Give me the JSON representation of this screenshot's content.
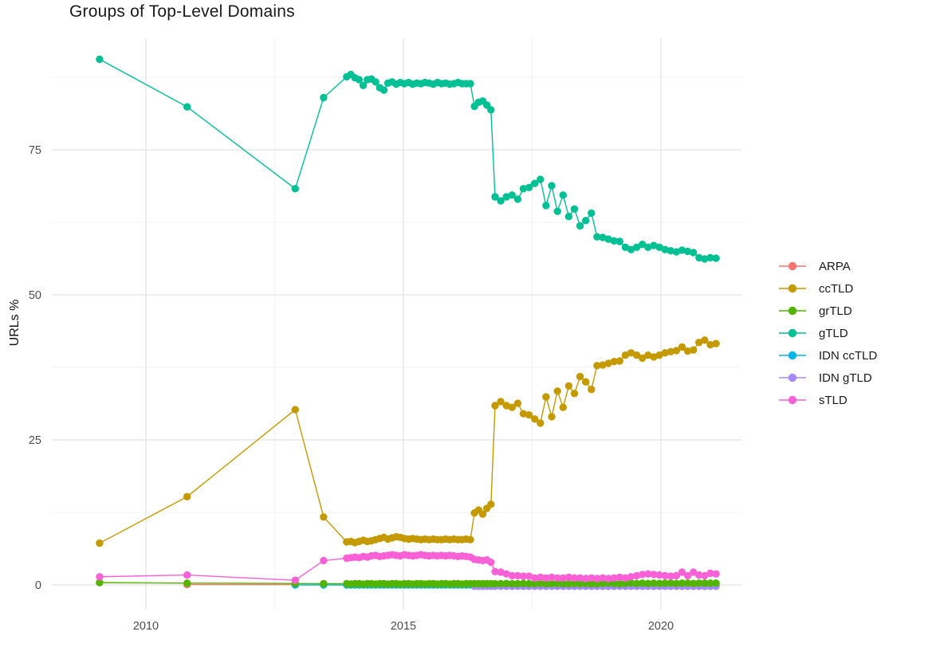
{
  "chart_data": {
    "type": "line",
    "title": "Groups of Top-Level Domains",
    "xlabel": "",
    "ylabel": "URLs %",
    "x_ticks": [
      2010,
      2015,
      2020
    ],
    "x_minor_ticks": [
      2012.5,
      2017.5
    ],
    "y_ticks": [
      0,
      25,
      50,
      75
    ],
    "y_minor_ticks": [
      12.5,
      37.5,
      62.5,
      87.5
    ],
    "x_range": [
      2008.2,
      2021.6
    ],
    "y_range": [
      -4.3,
      94.2
    ],
    "grid": true,
    "legend_position": "right",
    "background": "#FFFFFF",
    "grid_major_color": "#E3E3E3",
    "grid_minor_color": "#EFEFEF",
    "axis_text_color": "#4D4D4D",
    "series": [
      {
        "name": "ARPA",
        "color": "#F8766D",
        "x": [
          2010.8,
          2012.9
        ],
        "y": [
          0.05,
          0.05
        ]
      },
      {
        "name": "ccTLD",
        "color": "#C49A00",
        "x": [
          2009.1,
          2010.8,
          2012.9,
          2013.45,
          2013.9,
          2013.98,
          2014.06,
          2014.14,
          2014.22,
          2014.3,
          2014.38,
          2014.46,
          2014.54,
          2014.62,
          2014.7,
          2014.78,
          2014.86,
          2014.94,
          2015.02,
          2015.1,
          2015.18,
          2015.26,
          2015.34,
          2015.42,
          2015.5,
          2015.58,
          2015.66,
          2015.74,
          2015.82,
          2015.9,
          2015.98,
          2016.06,
          2016.14,
          2016.22,
          2016.3,
          2016.38,
          2016.46,
          2016.54,
          2016.62,
          2016.7,
          2016.78,
          2016.89,
          2017,
          2017.11,
          2017.22,
          2017.33,
          2017.44,
          2017.55,
          2017.66,
          2017.77,
          2017.88,
          2017.99,
          2018.1,
          2018.21,
          2018.32,
          2018.43,
          2018.54,
          2018.65,
          2018.76,
          2018.87,
          2018.98,
          2019.09,
          2019.2,
          2019.31,
          2019.42,
          2019.53,
          2019.64,
          2019.75,
          2019.86,
          2019.97,
          2020.08,
          2020.19,
          2020.3,
          2020.41,
          2020.52,
          2020.63,
          2020.74,
          2020.85,
          2020.96,
          2021.07
        ],
        "y": [
          7.2,
          15.2,
          30.2,
          11.7,
          7.4,
          7.5,
          7.3,
          7.5,
          7.7,
          7.5,
          7.6,
          7.8,
          8,
          8.2,
          7.9,
          8.1,
          8.3,
          8.2,
          8,
          7.9,
          8,
          7.9,
          7.8,
          7.9,
          7.8,
          7.9,
          7.8,
          7.8,
          7.9,
          7.8,
          7.9,
          7.8,
          7.8,
          7.9,
          7.8,
          12.4,
          12.9,
          12.2,
          13.2,
          13.9,
          30.9,
          31.6,
          30.9,
          30.6,
          31.3,
          29.5,
          29.3,
          28.6,
          27.9,
          32.4,
          29,
          33.4,
          30.6,
          34.3,
          33,
          35.9,
          35,
          33.7,
          37.8,
          37.9,
          38.2,
          38.5,
          38.6,
          39.6,
          40,
          39.6,
          39.1,
          39.6,
          39.3,
          39.6,
          40,
          40.2,
          40.4,
          41,
          40.3,
          40.5,
          41.8,
          42.2,
          41.4,
          41.6
        ]
      },
      {
        "name": "grTLD",
        "color": "#53B400",
        "x": [
          2009.1,
          2010.8,
          2012.9,
          2013.45,
          2013.9,
          2013.98,
          2014.06,
          2014.14,
          2014.22,
          2014.3,
          2014.38,
          2014.46,
          2014.54,
          2014.62,
          2014.7,
          2014.78,
          2014.86,
          2014.94,
          2015.02,
          2015.1,
          2015.18,
          2015.26,
          2015.34,
          2015.42,
          2015.5,
          2015.58,
          2015.66,
          2015.74,
          2015.82,
          2015.9,
          2015.98,
          2016.06,
          2016.14,
          2016.22,
          2016.3,
          2016.38,
          2016.46,
          2016.54,
          2016.62,
          2016.7,
          2016.78,
          2016.89,
          2017,
          2017.11,
          2017.22,
          2017.33,
          2017.44,
          2017.55,
          2017.66,
          2017.77,
          2017.88,
          2017.99,
          2018.1,
          2018.21,
          2018.32,
          2018.43,
          2018.54,
          2018.65,
          2018.76,
          2018.87,
          2018.98,
          2019.09,
          2019.2,
          2019.31,
          2019.42,
          2019.53,
          2019.64,
          2019.75,
          2019.86,
          2019.97,
          2020.08,
          2020.19,
          2020.3,
          2020.41,
          2020.52,
          2020.63,
          2020.74,
          2020.85,
          2020.96,
          2021.07
        ],
        "y": [
          0.4,
          0.3,
          0.25,
          0.2,
          0.2,
          0.15,
          0.2,
          0.2,
          0.15,
          0.2,
          0.2,
          0.15,
          0.2,
          0.2,
          0.15,
          0.2,
          0.2,
          0.15,
          0.2,
          0.2,
          0.15,
          0.2,
          0.2,
          0.15,
          0.2,
          0.2,
          0.15,
          0.2,
          0.2,
          0.15,
          0.2,
          0.2,
          0.15,
          0.2,
          0.2,
          0.2,
          0.2,
          0.2,
          0.2,
          0.2,
          0.2,
          0.2,
          0.25,
          0.2,
          0.2,
          0.25,
          0.2,
          0.2,
          0.25,
          0.2,
          0.2,
          0.25,
          0.2,
          0.2,
          0.25,
          0.2,
          0.25,
          0.2,
          0.2,
          0.25,
          0.3,
          0.25,
          0.2,
          0.25,
          0.3,
          0.25,
          0.3,
          0.25,
          0.3,
          0.25,
          0.3,
          0.3,
          0.25,
          0.3,
          0.3,
          0.25,
          0.3,
          0.3,
          0.3,
          0.3
        ]
      },
      {
        "name": "gTLD",
        "color": "#00C094",
        "x": [
          2009.1,
          2010.8,
          2012.9,
          2013.45,
          2013.9,
          2013.98,
          2014.06,
          2014.14,
          2014.22,
          2014.3,
          2014.38,
          2014.46,
          2014.54,
          2014.62,
          2014.7,
          2014.78,
          2014.86,
          2014.94,
          2015.02,
          2015.1,
          2015.18,
          2015.26,
          2015.34,
          2015.42,
          2015.5,
          2015.58,
          2015.66,
          2015.74,
          2015.82,
          2015.9,
          2015.98,
          2016.06,
          2016.14,
          2016.22,
          2016.3,
          2016.38,
          2016.46,
          2016.54,
          2016.62,
          2016.7,
          2016.78,
          2016.89,
          2017,
          2017.11,
          2017.22,
          2017.33,
          2017.44,
          2017.55,
          2017.66,
          2017.77,
          2017.88,
          2017.99,
          2018.1,
          2018.21,
          2018.32,
          2018.43,
          2018.54,
          2018.65,
          2018.76,
          2018.87,
          2018.98,
          2019.09,
          2019.2,
          2019.31,
          2019.42,
          2019.53,
          2019.64,
          2019.75,
          2019.86,
          2019.97,
          2020.08,
          2020.19,
          2020.3,
          2020.41,
          2020.52,
          2020.63,
          2020.74,
          2020.85,
          2020.96,
          2021.07
        ],
        "y": [
          90.6,
          82.4,
          68.3,
          84,
          87.6,
          88,
          87.4,
          87.1,
          86.1,
          87.1,
          87.2,
          86.7,
          85.7,
          85.3,
          86.5,
          86.7,
          86.3,
          86.6,
          86.4,
          86.6,
          86.3,
          86.5,
          86.4,
          86.6,
          86.5,
          86.3,
          86.6,
          86.4,
          86.5,
          86.3,
          86.4,
          86.6,
          86.4,
          86.4,
          86.4,
          82.5,
          83.2,
          83.4,
          82.7,
          81.9,
          66.9,
          66.2,
          66.9,
          67.2,
          66.5,
          68.3,
          68.5,
          69.2,
          69.9,
          65.4,
          68.8,
          64.4,
          67.2,
          63.5,
          64.8,
          61.9,
          62.8,
          64.1,
          60,
          59.9,
          59.6,
          59.3,
          59.2,
          58.2,
          57.8,
          58.2,
          58.7,
          58.2,
          58.5,
          58.2,
          57.8,
          57.6,
          57.4,
          57.7,
          57.5,
          57.3,
          56.4,
          56.2,
          56.4,
          56.3
        ]
      },
      {
        "name": "IDN ccTLD",
        "color": "#00B6EB",
        "x": [
          2012.9,
          2013.45,
          2013.9,
          2013.98,
          2014.06,
          2014.14,
          2014.22,
          2014.3,
          2014.38,
          2014.46,
          2014.54,
          2014.62,
          2014.7,
          2014.78,
          2014.86,
          2014.94,
          2015.02,
          2015.1,
          2015.18,
          2015.26,
          2015.34,
          2015.42,
          2015.5,
          2015.58,
          2015.66,
          2015.74,
          2015.82,
          2015.9,
          2015.98,
          2016.06,
          2016.14,
          2016.22,
          2016.3,
          2016.38,
          2016.46,
          2016.54,
          2016.62,
          2016.7,
          2016.78,
          2016.89,
          2017,
          2017.11,
          2017.22,
          2017.33,
          2017.44,
          2017.55,
          2017.66,
          2017.77,
          2017.88,
          2017.99,
          2018.1,
          2018.21,
          2018.32,
          2018.43,
          2018.54,
          2018.65,
          2018.76,
          2018.87,
          2018.98,
          2019.09,
          2019.2,
          2019.31,
          2019.42,
          2019.53,
          2019.64,
          2019.75,
          2019.86,
          2019.97,
          2020.08,
          2020.19,
          2020.3,
          2020.41,
          2020.52,
          2020.63,
          2020.74,
          2020.85,
          2020.96,
          2021.07
        ],
        "y": [
          0,
          0,
          0,
          0,
          0,
          0,
          0,
          0,
          0,
          0,
          0,
          0,
          0,
          0,
          0,
          0,
          0,
          0,
          0,
          0,
          0,
          0,
          0,
          0,
          0,
          0,
          0,
          0,
          0,
          0,
          0,
          0,
          0,
          0,
          0,
          0,
          0,
          0,
          0,
          0,
          0,
          0,
          0,
          0,
          0,
          0,
          0,
          0,
          0,
          0,
          0,
          0,
          0,
          0,
          0,
          0,
          0,
          0,
          0,
          0,
          0,
          0,
          0,
          0,
          0,
          0,
          0,
          0,
          0,
          0,
          0,
          0,
          0,
          0,
          0,
          0,
          0,
          0
        ]
      },
      {
        "name": "IDN gTLD",
        "color": "#A58AFF",
        "x": [
          2016.38,
          2016.46,
          2016.54,
          2016.62,
          2016.7,
          2016.78,
          2016.89,
          2017,
          2017.11,
          2017.22,
          2017.33,
          2017.44,
          2017.55,
          2017.66,
          2017.77,
          2017.88,
          2017.99,
          2018.1,
          2018.21,
          2018.32,
          2018.43,
          2018.54,
          2018.65,
          2018.76,
          2018.87,
          2018.98,
          2019.09,
          2019.2,
          2019.31,
          2019.42,
          2019.53,
          2019.64,
          2019.75,
          2019.86,
          2019.97,
          2020.08,
          2020.19,
          2020.3,
          2020.41,
          2020.52,
          2020.63,
          2020.74,
          2020.85,
          2020.96,
          2021.07
        ],
        "y": [
          -0.25,
          -0.25,
          -0.25,
          -0.25,
          -0.25,
          -0.25,
          -0.25,
          -0.25,
          -0.25,
          -0.25,
          -0.25,
          -0.25,
          -0.25,
          -0.25,
          -0.25,
          -0.25,
          -0.25,
          -0.25,
          -0.25,
          -0.25,
          -0.25,
          -0.25,
          -0.25,
          -0.25,
          -0.25,
          -0.25,
          -0.25,
          -0.25,
          -0.25,
          -0.25,
          -0.25,
          -0.25,
          -0.25,
          -0.25,
          -0.25,
          -0.25,
          -0.25,
          -0.25,
          -0.25,
          -0.25,
          -0.25,
          -0.25,
          -0.25,
          -0.25,
          -0.25
        ]
      },
      {
        "name": "sTLD",
        "color": "#FB61D7",
        "x": [
          2009.1,
          2010.8,
          2012.9,
          2013.45,
          2013.9,
          2013.98,
          2014.06,
          2014.14,
          2014.22,
          2014.3,
          2014.38,
          2014.46,
          2014.54,
          2014.62,
          2014.7,
          2014.78,
          2014.86,
          2014.94,
          2015.02,
          2015.1,
          2015.18,
          2015.26,
          2015.34,
          2015.42,
          2015.5,
          2015.58,
          2015.66,
          2015.74,
          2015.82,
          2015.9,
          2015.98,
          2016.06,
          2016.14,
          2016.22,
          2016.3,
          2016.38,
          2016.46,
          2016.54,
          2016.62,
          2016.7,
          2016.78,
          2016.89,
          2017,
          2017.11,
          2017.22,
          2017.33,
          2017.44,
          2017.55,
          2017.66,
          2017.77,
          2017.88,
          2017.99,
          2018.1,
          2018.21,
          2018.32,
          2018.43,
          2018.54,
          2018.65,
          2018.76,
          2018.87,
          2018.98,
          2019.09,
          2019.2,
          2019.31,
          2019.42,
          2019.53,
          2019.64,
          2019.75,
          2019.86,
          2019.97,
          2020.08,
          2020.19,
          2020.3,
          2020.41,
          2020.52,
          2020.63,
          2020.74,
          2020.85,
          2020.96,
          2021.07
        ],
        "y": [
          1.4,
          1.7,
          0.8,
          4.2,
          4.6,
          4.7,
          4.8,
          4.7,
          4.9,
          4.8,
          5,
          5.1,
          4.9,
          5,
          5.1,
          5.2,
          5.1,
          5,
          5.2,
          5.1,
          5,
          5.1,
          5.2,
          5.1,
          5,
          5.1,
          5,
          5.1,
          5,
          5.1,
          5,
          4.9,
          5,
          4.9,
          4.8,
          4.4,
          4.3,
          4.2,
          4.3,
          3.9,
          2.3,
          2.2,
          1.9,
          1.6,
          1.6,
          1.5,
          1.5,
          1.2,
          1.3,
          1.2,
          1.3,
          1.2,
          1.2,
          1.3,
          1.2,
          1.2,
          1.1,
          1.2,
          1.1,
          1.2,
          1.1,
          1.2,
          1.3,
          1.2,
          1.4,
          1.6,
          1.8,
          1.9,
          1.8,
          1.7,
          1.6,
          1.5,
          1.6,
          2.2,
          1.6,
          2.2,
          1.7,
          1.6,
          2,
          1.9
        ]
      }
    ]
  }
}
